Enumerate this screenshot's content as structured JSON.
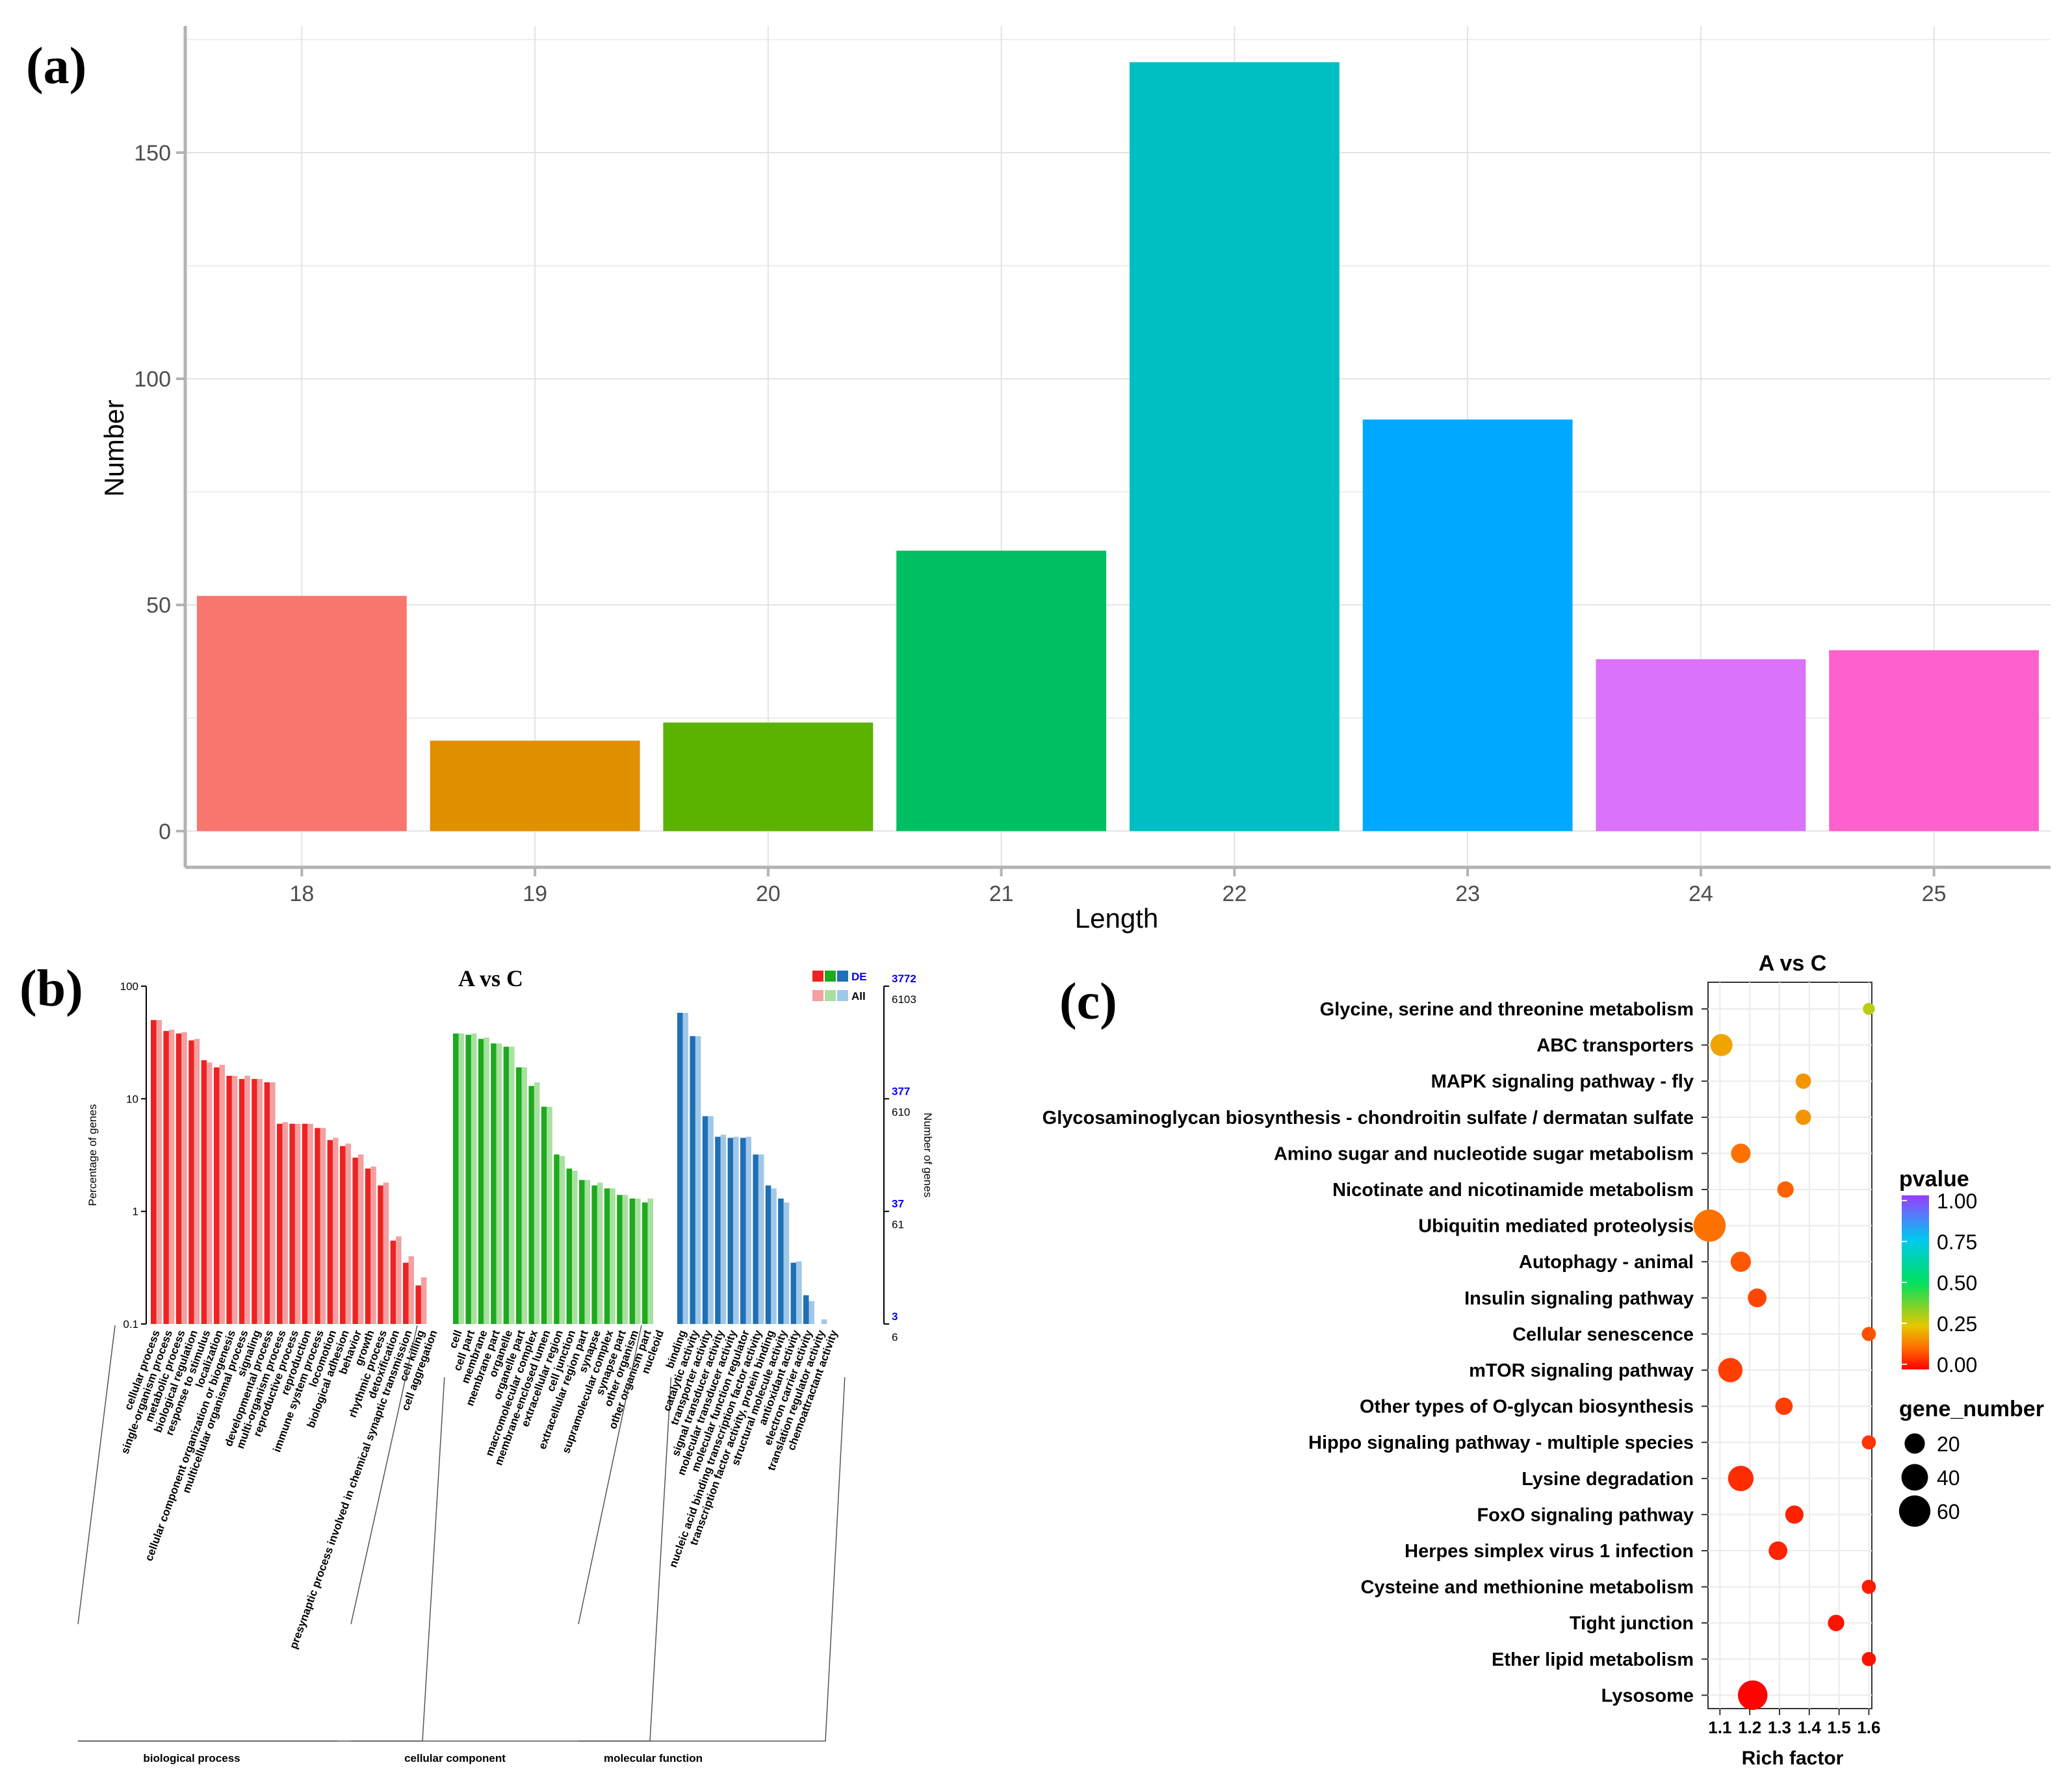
{
  "panel_labels": {
    "a": "(a)",
    "b": "(b)",
    "c": "(c)"
  },
  "chart_data": [
    {
      "type": "bar",
      "panel": "(a)",
      "title": "",
      "xlabel": "Length",
      "ylabel": "Number",
      "categories": [
        "18",
        "19",
        "20",
        "21",
        "22",
        "23",
        "24",
        "25"
      ],
      "values": [
        52,
        20,
        24,
        62,
        170,
        91,
        38,
        40
      ],
      "colors": [
        "#F8766D",
        "#E09000",
        "#5BB300",
        "#00BF63",
        "#00BFC4",
        "#00A9FF",
        "#DB72FB",
        "#FF61CC"
      ],
      "yticks": [
        0,
        50,
        100,
        150
      ],
      "ylim": [
        -8,
        178
      ],
      "grid": true
    },
    {
      "type": "bar",
      "panel": "(b)",
      "title": "A vs C",
      "ylabel": "Percentage of genes",
      "ylabel_right": "Number of genes",
      "yscale": "log",
      "ylim": [
        0.1,
        100
      ],
      "yticks": [
        "100",
        "10",
        "1",
        "0.1"
      ],
      "right_ticks": [
        {
          "de": "3772",
          "all": "6103"
        },
        {
          "de": "377",
          "all": "610"
        },
        {
          "de": "37",
          "all": "61"
        },
        {
          "de": "3",
          "all": "6"
        }
      ],
      "legend": {
        "de": "DE",
        "all": "All"
      },
      "groups": [
        {
          "name": "biological process",
          "color_de": "#ee2222",
          "color_all": "#f4a0a0",
          "terms": [
            "cellular process",
            "single-organism process",
            "metabolic process",
            "biological regulation",
            "response to stimulus",
            "localization",
            "cellular component organization or biogenesis",
            "multicellular organismal process",
            "signaling",
            "developmental process",
            "multi-organism process",
            "reproductive process",
            "reproduction",
            "immune system process",
            "locomotion",
            "biological adhesion",
            "behavior",
            "growth",
            "rhythmic process",
            "detoxification",
            "presynaptic process involved in chemical synaptic transmission",
            "cell killing",
            "cell aggregation"
          ],
          "de": [
            50,
            40,
            38,
            33,
            22,
            19,
            16,
            15,
            15,
            14,
            6,
            6,
            6,
            5.5,
            4.3,
            3.8,
            3.0,
            2.4,
            1.7,
            0.55,
            0.35,
            0.22,
            0
          ],
          "all": [
            50,
            41,
            39,
            34,
            21,
            20,
            16,
            16,
            15,
            14,
            6.2,
            6,
            6,
            5.5,
            4.5,
            4,
            3.2,
            2.5,
            1.8,
            0.6,
            0.4,
            0.26,
            0
          ]
        },
        {
          "name": "cellular component",
          "color_de": "#1daa1d",
          "color_all": "#a8e0a0",
          "terms": [
            "cell",
            "cell part",
            "membrane",
            "membrane part",
            "organelle",
            "organelle part",
            "macromolecular complex",
            "membrane-enclosed lumen",
            "extracellular region",
            "cell junction",
            "extracellular region part",
            "synapse",
            "supramolecular complex",
            "synapse part",
            "other organism",
            "other organism part",
            "nucleoid"
          ],
          "de": [
            38,
            37,
            34,
            31,
            29,
            19,
            13,
            8.5,
            3.2,
            2.4,
            1.9,
            1.7,
            1.6,
            1.4,
            1.3,
            1.2,
            0
          ],
          "all": [
            38,
            38,
            35,
            31,
            29,
            19,
            14,
            8.5,
            3.1,
            2.3,
            1.9,
            1.8,
            1.6,
            1.4,
            1.3,
            1.3,
            0.1
          ]
        },
        {
          "name": "molecular function",
          "color_de": "#1f6fb4",
          "color_all": "#9fc8e8",
          "terms": [
            "binding",
            "catalytic activity",
            "transporter activity",
            "signal transducer activity",
            "molecular transducer activity",
            "molecular function regulator",
            "nucleic acid binding transcription factor activity",
            "transcription factor activity, protein binding",
            "structural molecule activity",
            "antioxidant activity",
            "electron carrier activity",
            "translation regulator activity",
            "chemoattractant activity"
          ],
          "de": [
            58,
            36,
            7,
            4.6,
            4.5,
            4.5,
            3.2,
            1.7,
            1.3,
            0.35,
            0.18,
            0,
            0
          ],
          "all": [
            58,
            36,
            7,
            4.8,
            4.6,
            4.6,
            3.2,
            1.6,
            1.2,
            0.36,
            0.16,
            0.11,
            0
          ]
        }
      ]
    },
    {
      "type": "scatter",
      "panel": "(c)",
      "title": "A vs C",
      "xlabel": "Rich factor",
      "xticks": [
        "1.1",
        "1.2",
        "1.3",
        "1.4",
        "1.5",
        "1.6"
      ],
      "xlim": [
        1.06,
        1.61
      ],
      "legend_color_title": "pvalue",
      "legend_color_ticks": [
        "1.00",
        "0.75",
        "0.50",
        "0.25",
        "0.00"
      ],
      "legend_size_title": "gene_number",
      "legend_size_values": [
        20,
        40,
        60
      ],
      "pathways": [
        {
          "name": "Glycine, serine and threonine metabolism",
          "rich": 1.6,
          "genes": 4,
          "pvalue": 0.3
        },
        {
          "name": "ABC transporters",
          "rich": 1.105,
          "genes": 25,
          "pvalue": 0.2
        },
        {
          "name": "MAPK signaling pathway - fly",
          "rich": 1.38,
          "genes": 9,
          "pvalue": 0.18
        },
        {
          "name": "Glycosaminoglycan biosynthesis - chondroitin sulfate / dermatan sulfate",
          "rich": 1.38,
          "genes": 9,
          "pvalue": 0.18
        },
        {
          "name": "Amino sugar and nucleotide sugar metabolism",
          "rich": 1.17,
          "genes": 18,
          "pvalue": 0.13
        },
        {
          "name": "Nicotinate and nicotinamide metabolism",
          "rich": 1.32,
          "genes": 11,
          "pvalue": 0.11
        },
        {
          "name": "Ubiquitin mediated proteolysis",
          "rich": 1.065,
          "genes": 64,
          "pvalue": 0.13
        },
        {
          "name": "Autophagy - animal",
          "rich": 1.17,
          "genes": 20,
          "pvalue": 0.1
        },
        {
          "name": "Insulin signaling pathway",
          "rich": 1.225,
          "genes": 16,
          "pvalue": 0.08
        },
        {
          "name": "Cellular senescence",
          "rich": 1.6,
          "genes": 7,
          "pvalue": 0.09
        },
        {
          "name": "mTOR signaling pathway",
          "rich": 1.135,
          "genes": 32,
          "pvalue": 0.07
        },
        {
          "name": "Other types of O-glycan biosynthesis",
          "rich": 1.315,
          "genes": 13,
          "pvalue": 0.07
        },
        {
          "name": "Hippo signaling pathway - multiple species",
          "rich": 1.6,
          "genes": 7,
          "pvalue": 0.06
        },
        {
          "name": "Lysine degradation",
          "rich": 1.17,
          "genes": 36,
          "pvalue": 0.05
        },
        {
          "name": "FoxO signaling pathway",
          "rich": 1.35,
          "genes": 15,
          "pvalue": 0.04
        },
        {
          "name": "Herpes simplex virus 1 infection",
          "rich": 1.295,
          "genes": 16,
          "pvalue": 0.04
        },
        {
          "name": "Cysteine and methionine metabolism",
          "rich": 1.6,
          "genes": 7,
          "pvalue": 0.03
        },
        {
          "name": "Tight junction",
          "rich": 1.49,
          "genes": 11,
          "pvalue": 0.02
        },
        {
          "name": "Ether lipid metabolism",
          "rich": 1.6,
          "genes": 7,
          "pvalue": 0.02
        },
        {
          "name": "Lysosome",
          "rich": 1.21,
          "genes": 52,
          "pvalue": 0.005
        }
      ]
    }
  ]
}
